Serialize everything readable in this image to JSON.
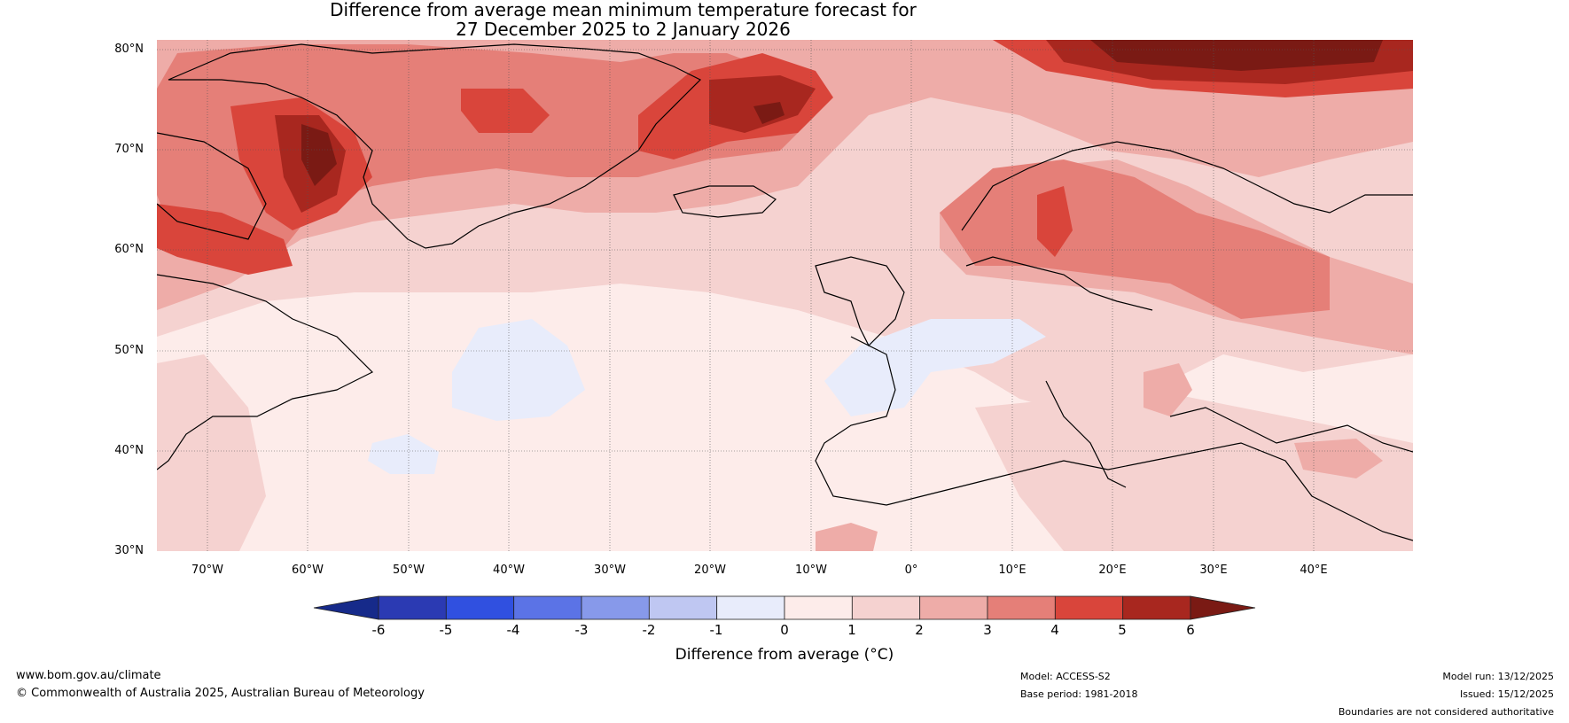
{
  "title": {
    "line1": "Difference from average mean minimum temperature forecast for",
    "line2": "27 December 2025 to 2 January 2026"
  },
  "map": {
    "lat_labels": [
      "80°N",
      "70°N",
      "60°N",
      "50°N",
      "40°N",
      "30°N"
    ],
    "lon_labels": [
      "70°W",
      "60°W",
      "50°W",
      "40°W",
      "30°W",
      "20°W",
      "10°W",
      "0°",
      "10°E",
      "20°E",
      "30°E",
      "40°E"
    ]
  },
  "colorbar": {
    "ticks": [
      "-6",
      "-5",
      "-4",
      "-3",
      "-2",
      "-1",
      "0",
      "1",
      "2",
      "3",
      "4",
      "5",
      "6"
    ],
    "colors": [
      "#2b3ab3",
      "#3050e0",
      "#5b73e6",
      "#8799ea",
      "#bfc7f2",
      "#e8ecfb",
      "#fdecea",
      "#f5d2d0",
      "#eeaca8",
      "#e57f78",
      "#d9453b",
      "#a8271f"
    ],
    "under_color": "#162a8a",
    "over_color": "#7a1a14",
    "label": "Difference from average (°C)"
  },
  "footer": {
    "website": "www.bom.gov.au/climate",
    "copyright": "© Commonwealth of Australia 2025, Australian Bureau of Meteorology",
    "model": "Model: ACCESS-S2",
    "base_period": "Base period: 1981-2018",
    "model_run": "Model run: 13/12/2025",
    "issued": "Issued: 15/12/2025",
    "disclaimer": "Boundaries are not considered authoritative"
  }
}
